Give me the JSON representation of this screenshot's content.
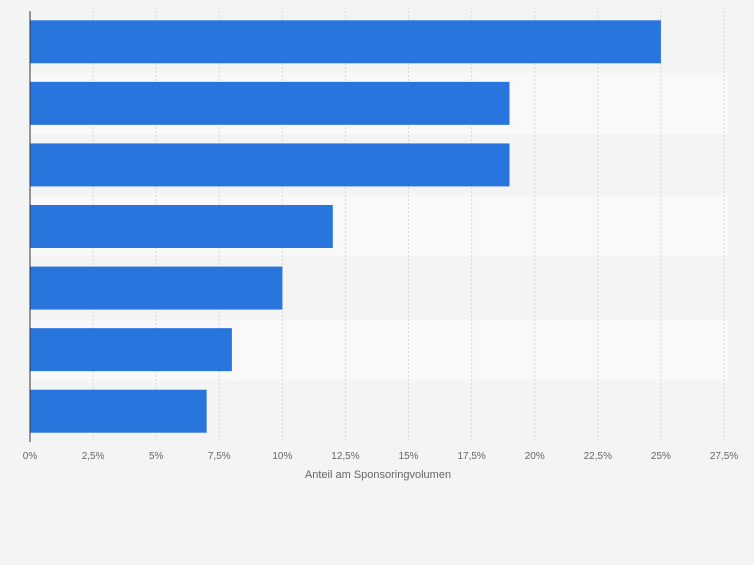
{
  "chart_data": {
    "type": "bar",
    "orientation": "horizontal",
    "categories": [
      "",
      "",
      "",
      "",
      "",
      "",
      ""
    ],
    "values": [
      25,
      19,
      19,
      12,
      10,
      8,
      7
    ],
    "xlabel": "Anteil am Sponsoringvolumen",
    "ylabel": "",
    "xlim": [
      0,
      27.5
    ],
    "xticks": [
      0,
      2.5,
      5,
      7.5,
      10,
      12.5,
      15,
      17.5,
      20,
      22.5,
      25,
      27.5
    ],
    "xtick_labels": [
      "0%",
      "2,5%",
      "5%",
      "7,5%",
      "10%",
      "12,5%",
      "15%",
      "17,5%",
      "20%",
      "22,5%",
      "25%",
      "27,5%"
    ],
    "grid": true,
    "bar_color": "#2876dd",
    "background_color": "#f4f4f4",
    "band_colors": [
      "#f4f4f4",
      "#f9f9f9"
    ]
  }
}
